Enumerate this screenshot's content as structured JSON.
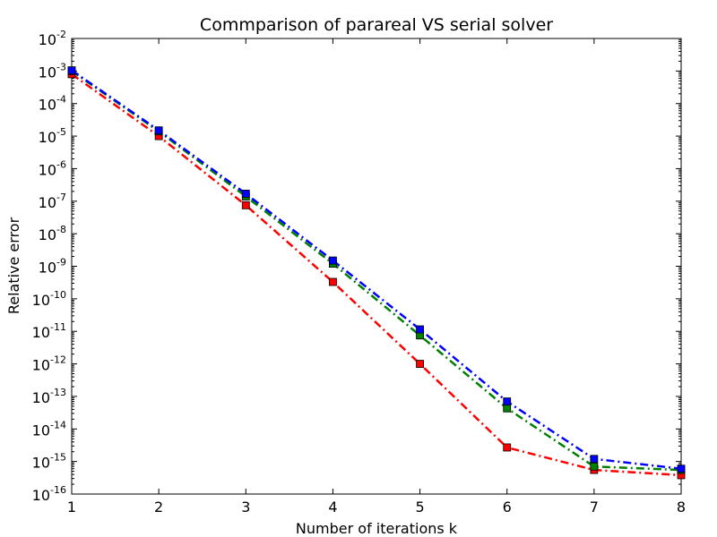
{
  "chart_data": {
    "type": "line",
    "title": "Commparison of parareal VS serial solver",
    "xlabel": "Number of iterations k",
    "ylabel": "Relative error",
    "xlim": [
      1,
      8
    ],
    "ylim": [
      1e-16,
      0.01
    ],
    "yscale": "log",
    "xticks": [
      "1",
      "2",
      "3",
      "4",
      "5",
      "6",
      "7",
      "8"
    ],
    "yticks": [
      {
        "base": "10",
        "exp": "-2"
      },
      {
        "base": "10",
        "exp": "-3"
      },
      {
        "base": "10",
        "exp": "-4"
      },
      {
        "base": "10",
        "exp": "-5"
      },
      {
        "base": "10",
        "exp": "-6"
      },
      {
        "base": "10",
        "exp": "-7"
      },
      {
        "base": "10",
        "exp": "-8"
      },
      {
        "base": "10",
        "exp": "-9"
      },
      {
        "base": "10",
        "exp": "-10"
      },
      {
        "base": "10",
        "exp": "-11"
      },
      {
        "base": "10",
        "exp": "-12"
      },
      {
        "base": "10",
        "exp": "-13"
      },
      {
        "base": "10",
        "exp": "-14"
      },
      {
        "base": "10",
        "exp": "-15"
      },
      {
        "base": "10",
        "exp": "-16"
      }
    ],
    "grid": false,
    "x": [
      1,
      2,
      3,
      4,
      5,
      6,
      7,
      8
    ],
    "series": [
      {
        "color": "#ff0000",
        "marker": "square",
        "linestyle": "dash-dot",
        "values": [
          0.0008,
          1e-05,
          7.5e-08,
          3.3e-10,
          1e-12,
          2.7e-15,
          5.5e-16,
          3.8e-16
        ]
      },
      {
        "color": "#008000",
        "marker": "square",
        "linestyle": "dash-dot",
        "values": [
          0.001,
          1.4e-05,
          1.4e-07,
          1.2e-09,
          7.5e-12,
          4.3e-14,
          7e-16,
          5.5e-16
        ]
      },
      {
        "color": "#0000ff",
        "marker": "square",
        "linestyle": "dash-dot",
        "values": [
          0.00105,
          1.5e-05,
          1.7e-07,
          1.5e-09,
          1.15e-11,
          7e-14,
          1.2e-15,
          6e-16
        ]
      }
    ]
  }
}
